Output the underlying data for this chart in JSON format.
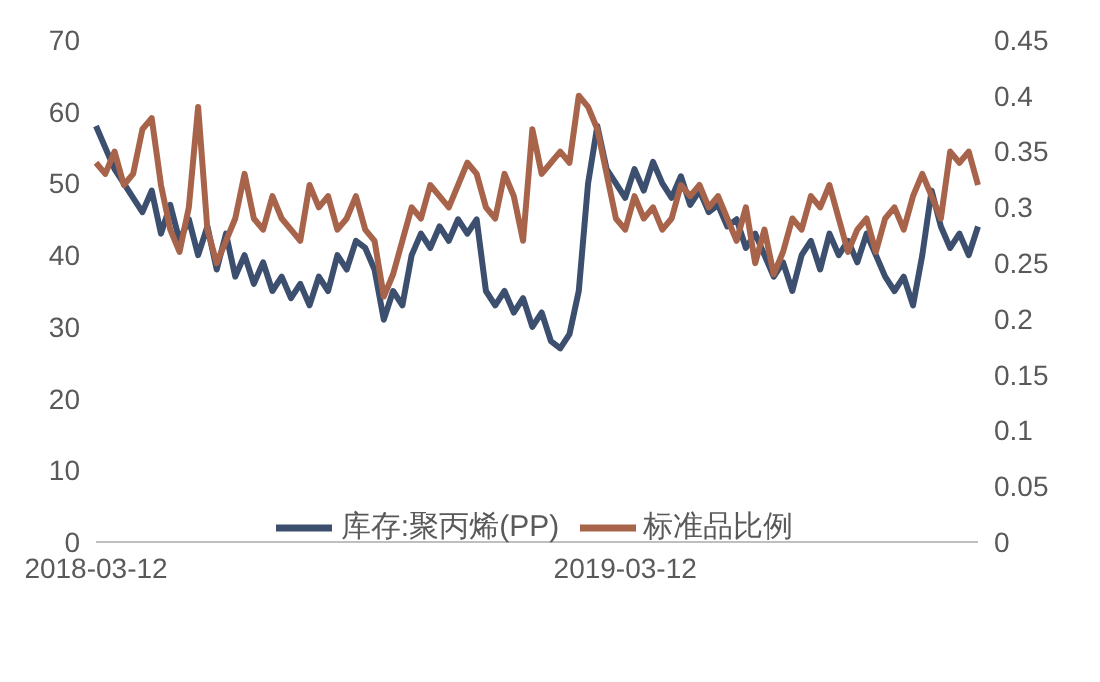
{
  "chart_data": {
    "type": "line",
    "categories": [
      "2018-03-12",
      null,
      null,
      null,
      null,
      null,
      null,
      null,
      null,
      null,
      null,
      null,
      null,
      null,
      null,
      null,
      null,
      null,
      null,
      null,
      null,
      null,
      null,
      null,
      null,
      null,
      null,
      null,
      null,
      null,
      null,
      null,
      null,
      null,
      null,
      null,
      null,
      null,
      null,
      null,
      null,
      null,
      null,
      null,
      null,
      null,
      null,
      null,
      null,
      null,
      null,
      null,
      null,
      null,
      null,
      null,
      null,
      "2019-03-12",
      null,
      null,
      null,
      null,
      null,
      null,
      null,
      null,
      null,
      null,
      null,
      null,
      null,
      null,
      null,
      null,
      null,
      null,
      null,
      null,
      null,
      null,
      null,
      null,
      null,
      null,
      null,
      null,
      null,
      null,
      null,
      null,
      null,
      null,
      null,
      null,
      null,
      null
    ],
    "series": [
      {
        "name": "库存:聚丙烯(PP)",
        "color": "#3d4f6e",
        "values": [
          58,
          55,
          52,
          50,
          48,
          46,
          49,
          43,
          47,
          42,
          45,
          40,
          44,
          38,
          43,
          37,
          40,
          36,
          39,
          35,
          37,
          34,
          36,
          33,
          37,
          35,
          40,
          38,
          42,
          41,
          38,
          31,
          35,
          33,
          40,
          43,
          41,
          44,
          42,
          45,
          43,
          45,
          35,
          33,
          35,
          32,
          34,
          30,
          32,
          28,
          27,
          29,
          35,
          50,
          58,
          52,
          50,
          48,
          52,
          49,
          53,
          50,
          48,
          51,
          47,
          49,
          46,
          47,
          44,
          45,
          41,
          43,
          40,
          37,
          39,
          35,
          40,
          42,
          38,
          43,
          40,
          42,
          39,
          43,
          40,
          37,
          35,
          37,
          33,
          40,
          49,
          44,
          41,
          43,
          40,
          44
        ]
      },
      {
        "name": "标准品比例",
        "color": "#a8644a",
        "axis": "y2",
        "values": [
          0.34,
          0.33,
          0.35,
          0.32,
          0.33,
          0.37,
          0.38,
          0.32,
          0.28,
          0.26,
          0.3,
          0.39,
          0.28,
          0.25,
          0.27,
          0.29,
          0.33,
          0.29,
          0.28,
          0.31,
          0.29,
          0.28,
          0.27,
          0.32,
          0.3,
          0.31,
          0.28,
          0.29,
          0.31,
          0.28,
          0.27,
          0.22,
          0.24,
          0.27,
          0.3,
          0.29,
          0.32,
          0.31,
          0.3,
          0.32,
          0.34,
          0.33,
          0.3,
          0.29,
          0.33,
          0.31,
          0.27,
          0.37,
          0.33,
          0.34,
          0.35,
          0.34,
          0.4,
          0.39,
          0.37,
          0.33,
          0.29,
          0.28,
          0.31,
          0.29,
          0.3,
          0.28,
          0.29,
          0.32,
          0.31,
          0.32,
          0.3,
          0.31,
          0.29,
          0.27,
          0.3,
          0.25,
          0.28,
          0.24,
          0.26,
          0.29,
          0.28,
          0.31,
          0.3,
          0.32,
          0.29,
          0.26,
          0.28,
          0.29,
          0.26,
          0.29,
          0.3,
          0.28,
          0.31,
          0.33,
          0.31,
          0.29,
          0.35,
          0.34,
          0.35,
          0.32
        ]
      }
    ],
    "ylim": [
      0,
      70
    ],
    "yticks": [
      0,
      10,
      20,
      30,
      40,
      50,
      60,
      70
    ],
    "y2lim": [
      0,
      0.45
    ],
    "y2ticks": [
      0,
      0.05,
      0.1,
      0.15,
      0.2,
      0.25,
      0.3,
      0.35,
      0.4,
      0.45
    ],
    "legend": "bottom",
    "grid": false,
    "marker": "none",
    "line_style": "solid"
  }
}
